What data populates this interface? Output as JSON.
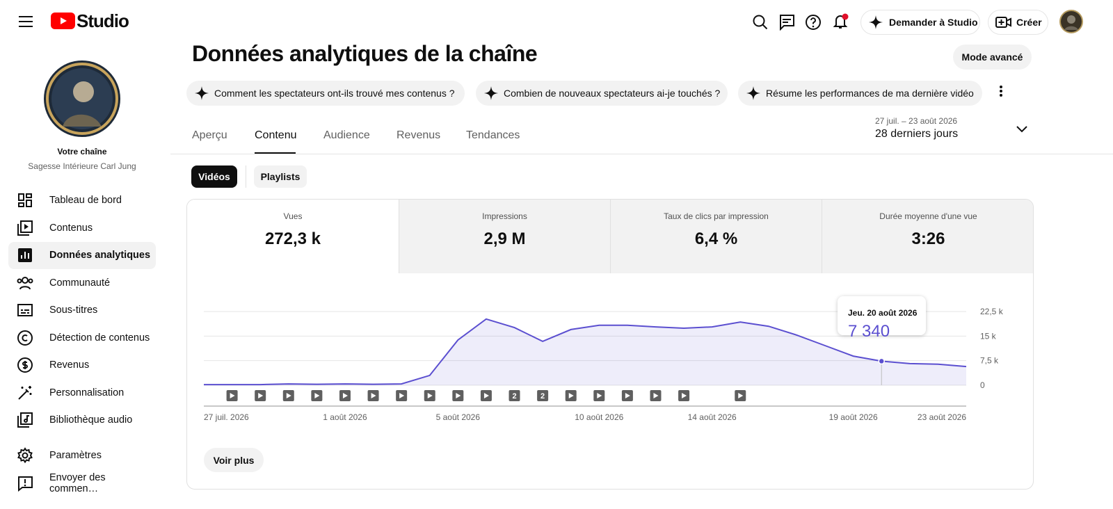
{
  "top_bar": {
    "logo_text": "Studio",
    "ask_button": "Demander à Studio",
    "create_button": "Créer"
  },
  "sidebar": {
    "channel_label": "Votre chaîne",
    "channel_name": "Sagesse Intérieure Carl Jung",
    "nav": [
      "Tableau de bord",
      "Contenus",
      "Données analytiques",
      "Communauté",
      "Sous-titres",
      "Détection de contenus",
      "Revenus",
      "Personnalisation",
      "Bibliothèque audio"
    ],
    "footer_nav": [
      "Paramètres",
      "Envoyer des commen…"
    ]
  },
  "page": {
    "title": "Données analytiques de la chaîne",
    "advanced_button": "Mode avancé",
    "suggestions": [
      "Comment les spectateurs ont-ils trouvé mes contenus ?",
      "Combien de nouveaux spectateurs ai-je touchés ?",
      "Résume les performances de ma dernière vidéo"
    ],
    "tabs": [
      "Aperçu",
      "Contenu",
      "Audience",
      "Revenus",
      "Tendances"
    ],
    "date_range": "27 juil. – 23 août 2026",
    "period": "28 derniers jours",
    "content_types": [
      "Vidéos",
      "Playlists"
    ],
    "more_button": "Voir plus"
  },
  "metrics": [
    {
      "label": "Vues",
      "value": "272,3 k"
    },
    {
      "label": "Impressions",
      "value": "2,9 M"
    },
    {
      "label": "Taux de clics par impression",
      "value": "6,4 %"
    },
    {
      "label": "Durée moyenne d'une vue",
      "value": "3:26"
    }
  ],
  "chart_data": {
    "type": "line",
    "fill": true,
    "color": "#5b4fd0",
    "categories": [
      "27 juil. 2026",
      null,
      null,
      null,
      null,
      "1 août 2026",
      null,
      null,
      null,
      "5 août 2026",
      null,
      null,
      null,
      null,
      "10 août 2026",
      null,
      null,
      null,
      "14 août 2026",
      null,
      null,
      null,
      null,
      "19 août 2026",
      null,
      null,
      null,
      "23 août 2026"
    ],
    "values": [
      200,
      200,
      200,
      400,
      300,
      400,
      300,
      400,
      3000,
      13800,
      20200,
      17600,
      13400,
      17000,
      18300,
      18300,
      17800,
      17400,
      17800,
      19300,
      18000,
      15300,
      12100,
      8900,
      7340,
      6600,
      6400,
      5700
    ],
    "value_labels": [
      null,
      null,
      null,
      null,
      null,
      null,
      null,
      null,
      null,
      null,
      null,
      null,
      null,
      null,
      null,
      null,
      null,
      null,
      null,
      null,
      null,
      null,
      null,
      null,
      "7 340",
      null,
      null,
      null
    ],
    "tooltip_title": "Jeu. 20 août 2026",
    "publish_counts": [
      0,
      1,
      1,
      1,
      1,
      1,
      1,
      1,
      1,
      1,
      1,
      2,
      2,
      1,
      1,
      1,
      1,
      1,
      0,
      1,
      0,
      0,
      0,
      0,
      0,
      0,
      0,
      0
    ],
    "ylim": [
      0,
      22500
    ],
    "yticks": [
      0,
      {
        "value": 7500,
        "label": "7,5 k"
      },
      {
        "value": 15000,
        "label": "15 k"
      },
      {
        "value": 22500,
        "label": "22,5 k"
      }
    ],
    "grid": true
  }
}
